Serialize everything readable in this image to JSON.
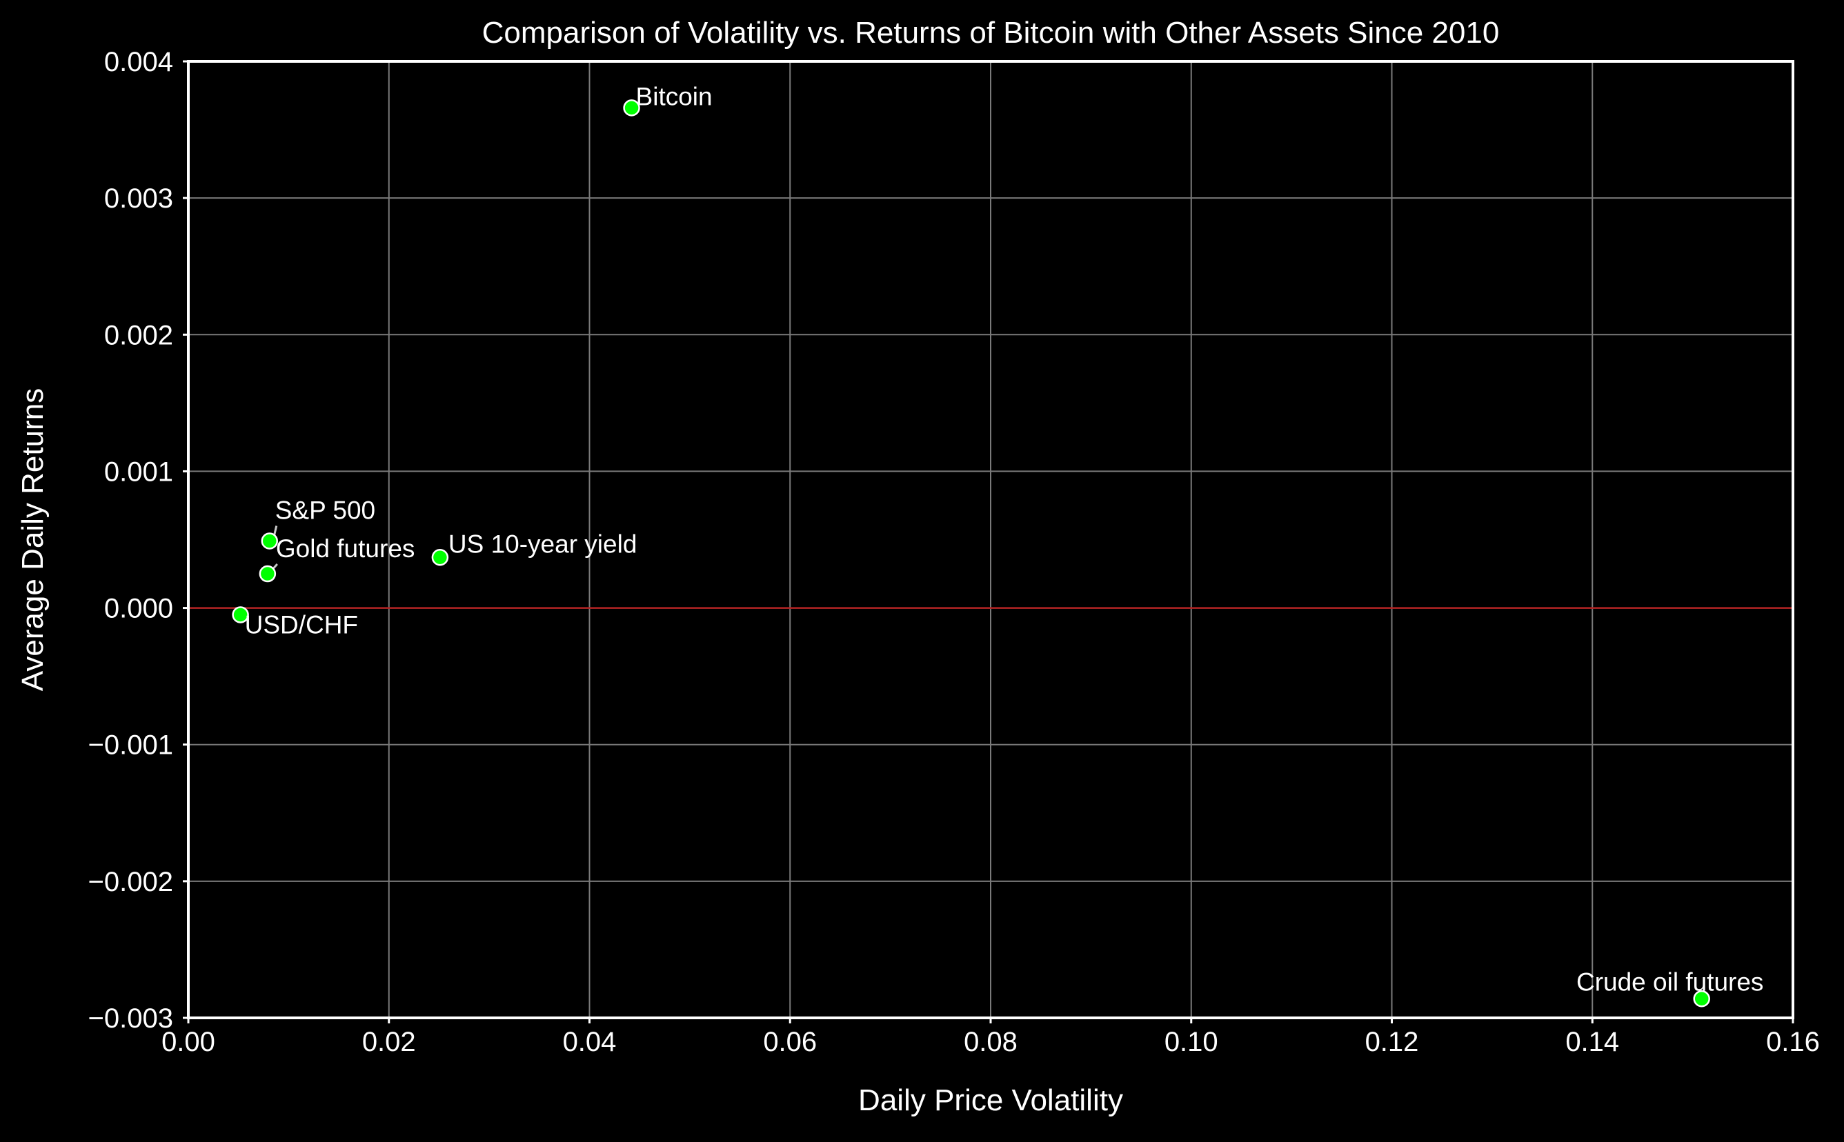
{
  "chart_data": {
    "type": "scatter",
    "title": "Comparison of Volatility vs. Returns of Bitcoin with Other Assets Since 2010",
    "xlabel": "Daily Price Volatility",
    "ylabel": "Average Daily Returns",
    "xlim": [
      0.0,
      0.16
    ],
    "ylim": [
      -0.003,
      0.004
    ],
    "xticks": [
      0.0,
      0.02,
      0.04,
      0.06,
      0.08,
      0.1,
      0.12,
      0.14,
      0.16
    ],
    "xtick_labels": [
      "0.00",
      "0.02",
      "0.04",
      "0.06",
      "0.08",
      "0.10",
      "0.12",
      "0.14",
      "0.16"
    ],
    "yticks": [
      -0.003,
      -0.002,
      -0.001,
      0.0,
      0.001,
      0.002,
      0.003,
      0.004
    ],
    "ytick_labels": [
      "−0.003",
      "−0.002",
      "−0.001",
      "0.000",
      "0.001",
      "0.002",
      "0.003",
      "0.004"
    ],
    "grid": true,
    "reference_line": {
      "y": 0.0,
      "color": "#b22222"
    },
    "points": [
      {
        "label": "Bitcoin",
        "x": 0.0442,
        "y": 0.00366
      },
      {
        "label": "S&P 500",
        "x": 0.0081,
        "y": 0.00049
      },
      {
        "label": "Gold futures",
        "x": 0.0079,
        "y": 0.00025
      },
      {
        "label": "US 10-year yield",
        "x": 0.0251,
        "y": 0.00037
      },
      {
        "label": "USD/CHF",
        "x": 0.0052,
        "y": -5e-05
      },
      {
        "label": "Crude oil futures",
        "x": 0.1509,
        "y": -0.00286
      }
    ]
  },
  "colors": {
    "background": "#000000",
    "axes": "#ffffff",
    "grid": "#7a7a7a",
    "marker_fill": "#00ff00",
    "marker_edge": "#ffffff",
    "text": "#ffffff",
    "zero_line": "#b22222"
  }
}
